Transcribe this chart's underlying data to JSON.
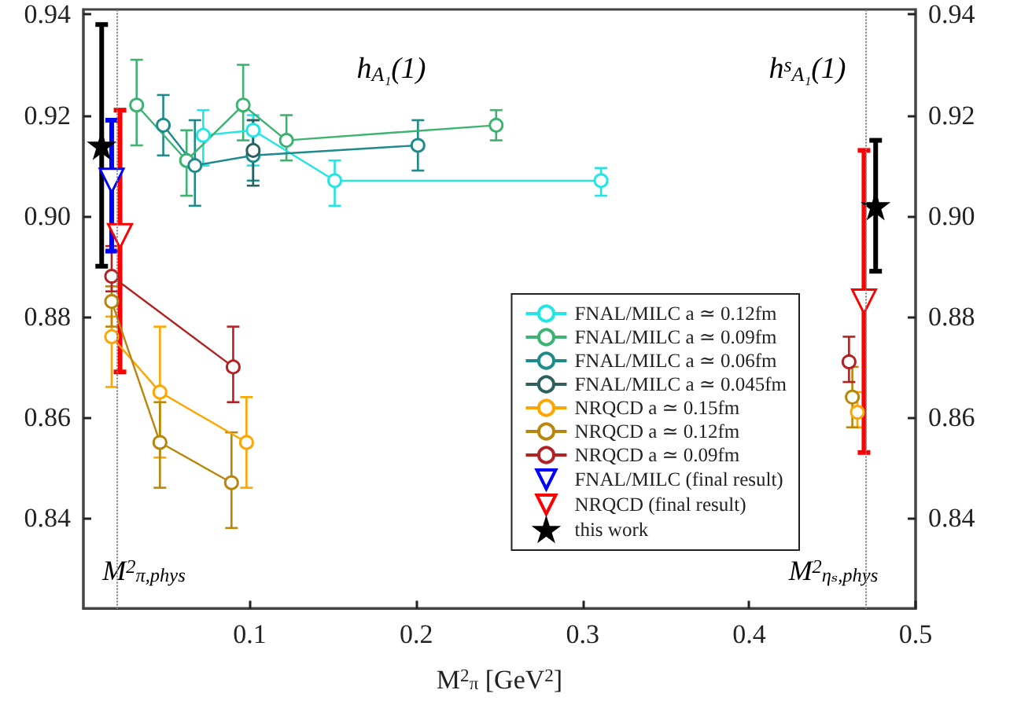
{
  "chart_data": {
    "type": "line",
    "xlabel": "M$^{2}$$_{π}$ [GeV$^{2}$]",
    "xlim": [
      0,
      0.5
    ],
    "xticks": [
      0.1,
      0.2,
      0.3,
      0.4,
      0.5
    ],
    "ylim": [
      0.822,
      0.941
    ],
    "yticks": [
      {
        "value": 0.84,
        "label": "0.84"
      },
      {
        "value": 0.86,
        "label": "0.86"
      },
      {
        "value": 0.88,
        "label": "0.88"
      },
      {
        "value": 0.9,
        "label": "0.90"
      },
      {
        "value": 0.92,
        "label": "0.92"
      },
      {
        "value": 0.94,
        "label": "0.94"
      }
    ],
    "y2lim": [
      0.822,
      0.941
    ],
    "y2ticks": [
      {
        "value": 0.84,
        "label": "0.84"
      },
      {
        "value": 0.86,
        "label": "0.86"
      },
      {
        "value": 0.88,
        "label": "0.88"
      },
      {
        "value": 0.9,
        "label": "0.90"
      },
      {
        "value": 0.92,
        "label": "0.92"
      },
      {
        "value": 0.94,
        "label": "0.94"
      }
    ],
    "annotations": [
      "h$_{A₁}$(1)",
      "h$^{s}$$_{A₁}$(1)"
    ],
    "ref_lines": [
      {
        "axis": "x",
        "value": 0.019,
        "label": "M$^{2}$$_{π,phys}$",
        "color": "#808080",
        "line_style": "dotted"
      },
      {
        "axis": "x",
        "value": 0.471,
        "label": "M$^{2}$$_{ηₛ,phys}$",
        "color": "#808080",
        "line_style": "dotted"
      }
    ],
    "grid": false,
    "legend": "bottom right",
    "marker": "circle",
    "line_style": "solid",
    "series": [
      {
        "name": "FNAL/MILC a ≃ 0.12fm",
        "color": "#22e5e5",
        "x": [
          0.072,
          0.102,
          0.151,
          0.311
        ],
        "values": [
          0.916,
          0.917,
          0.907,
          0.907
        ],
        "errors": [
          [
            0.91,
            0.921
          ],
          [
            0.91,
            0.92
          ],
          [
            0.902,
            0.911
          ],
          [
            0.904,
            0.9095
          ]
        ]
      },
      {
        "name": "FNAL/MILC a ≃ 0.09fm",
        "color": "#3cb371",
        "x": [
          0.032,
          0.062,
          0.096,
          0.122,
          0.248
        ],
        "values": [
          0.922,
          0.911,
          0.922,
          0.915,
          0.918
        ],
        "errors": [
          [
            0.914,
            0.931
          ],
          [
            0.904,
            0.917
          ],
          [
            0.915,
            0.93
          ],
          [
            0.911,
            0.92
          ],
          [
            0.915,
            0.921
          ]
        ]
      },
      {
        "name": "FNAL/MILC a ≃ 0.06fm",
        "color": "#1f8a8a",
        "x": [
          0.048,
          0.067,
          0.102,
          0.201
        ],
        "values": [
          0.918,
          0.91,
          0.912,
          0.914
        ],
        "errors": [
          [
            0.912,
            0.924
          ],
          [
            0.902,
            0.919
          ],
          [
            0.907,
            0.919
          ],
          [
            0.909,
            0.919
          ]
        ]
      },
      {
        "name": "FNAL/MILC a ≃ 0.045fm",
        "color": "#2f5f5f",
        "x": [
          0.102
        ],
        "values": [
          0.913
        ],
        "errors": [
          [
            0.906,
            0.919
          ]
        ]
      },
      {
        "name": "NRQCD a ≃ 0.15fm",
        "color": "#ffa500",
        "x": [
          0.017,
          0.046,
          0.098
        ],
        "values": [
          0.876,
          0.865,
          0.855
        ],
        "errors": [
          [
            0.866,
            0.88
          ],
          [
            0.852,
            0.878
          ],
          [
            0.846,
            0.864
          ]
        ]
      },
      {
        "name": "NRQCD a ≃ 0.12fm",
        "color": "#b8860b",
        "x": [
          0.017,
          0.046,
          0.089
        ],
        "values": [
          0.883,
          0.855,
          0.847
        ],
        "errors": [
          [
            0.878,
            0.886
          ],
          [
            0.846,
            0.863
          ],
          [
            0.838,
            0.857
          ]
        ]
      },
      {
        "name": "NRQCD a ≃ 0.09fm",
        "color": "#b22222",
        "x": [
          0.017,
          0.09
        ],
        "values": [
          0.888,
          0.87
        ],
        "errors": [
          [
            0.885,
            0.894
          ],
          [
            0.863,
            0.878
          ]
        ]
      },
      {
        "type": "scatter",
        "color": "#ffa500",
        "x": [
          0.465
        ],
        "values": [
          0.861
        ],
        "errors": [
          [
            0.858,
            0.865
          ]
        ]
      },
      {
        "type": "scatter",
        "color": "#b8860b",
        "x": [
          0.462
        ],
        "values": [
          0.864
        ],
        "errors": [
          [
            0.858,
            0.87
          ]
        ]
      },
      {
        "type": "scatter",
        "color": "#b22222",
        "x": [
          0.46
        ],
        "values": [
          0.871
        ],
        "errors": [
          [
            0.867,
            0.876
          ]
        ]
      },
      {
        "name": "FNAL/MILC (final result)",
        "type": "scatter",
        "marker": "triangle",
        "color": "#0000ff",
        "x": [
          0.017
        ],
        "values": [
          0.907
        ],
        "errors": [
          [
            0.893,
            0.919
          ]
        ]
      },
      {
        "name": "NRQCD (final result)",
        "type": "scatter",
        "marker": "triangle",
        "color": "#ff0000",
        "x": [
          0.022,
          0.469
        ],
        "values": [
          0.896,
          0.883
        ],
        "errors": [
          [
            0.869,
            0.921
          ],
          [
            0.853,
            0.913
          ]
        ]
      },
      {
        "name": "this work",
        "type": "scatter",
        "marker": "star",
        "color": "#000000",
        "x": [
          0.011,
          0.476
        ],
        "values": [
          0.914,
          0.902
        ],
        "errors": [
          [
            0.89,
            0.938
          ],
          [
            0.889,
            0.915
          ]
        ]
      }
    ]
  }
}
